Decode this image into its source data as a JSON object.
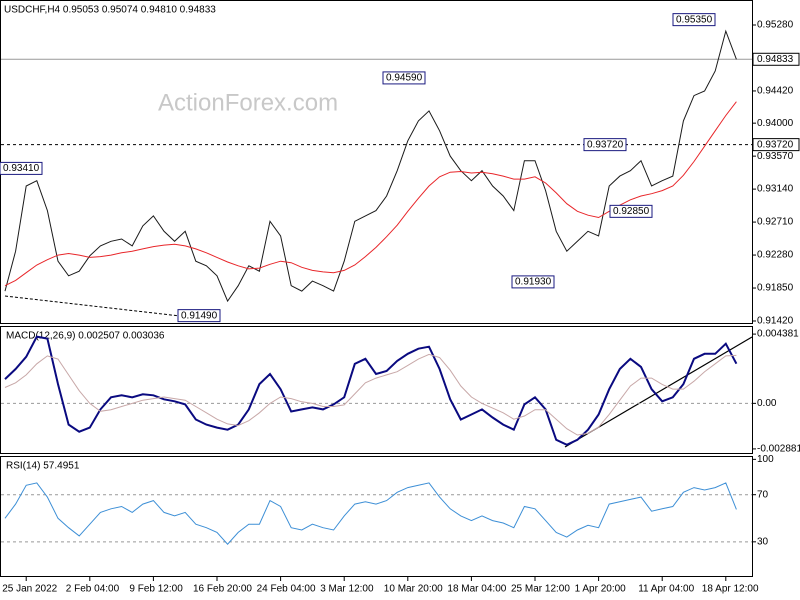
{
  "chart_data": [
    {
      "type": "line",
      "title": "USDCHF,H4 0.95053 0.95074 0.94810 0.94833",
      "watermark": "ActionForex.com",
      "categories": [
        null,
        null,
        "25 Jan 2022",
        null,
        null,
        null,
        null,
        null,
        "2 Feb 04:00",
        null,
        null,
        null,
        null,
        null,
        "9 Feb 12:00",
        null,
        null,
        null,
        null,
        null,
        "16 Feb 20:00",
        null,
        null,
        null,
        null,
        null,
        "24 Feb 04:00",
        null,
        null,
        null,
        null,
        null,
        "3 Mar 12:00",
        null,
        null,
        null,
        null,
        null,
        "10 Mar 20:00",
        null,
        null,
        null,
        null,
        null,
        "18 Mar 04:00",
        null,
        null,
        null,
        null,
        null,
        "25 Mar 12:00",
        null,
        null,
        null,
        null,
        null,
        "1 Apr 20:00",
        null,
        null,
        null,
        null,
        null,
        "11 Apr 04:00",
        null,
        null,
        null,
        null,
        null,
        "18 Apr 12:00",
        null
      ],
      "series": [
        {
          "color": "#1a1a1a",
          "values": [
            0.9181,
            0.9233,
            0.9318,
            0.9325,
            0.9286,
            0.922,
            0.9201,
            0.9207,
            0.9227,
            0.924,
            0.9246,
            0.9249,
            0.924,
            0.9266,
            0.9279,
            0.9259,
            0.9246,
            0.9259,
            0.922,
            0.9214,
            0.9201,
            0.9168,
            0.9188,
            0.9214,
            0.9207,
            0.9272,
            0.9253,
            0.9188,
            0.9181,
            0.9194,
            0.9188,
            0.9181,
            0.922,
            0.9272,
            0.9279,
            0.9286,
            0.9305,
            0.9338,
            0.9377,
            0.9403,
            0.9416,
            0.939,
            0.9357,
            0.9338,
            0.9325,
            0.9338,
            0.9318,
            0.9305,
            0.9286,
            0.9351,
            0.9351,
            0.9312,
            0.9259,
            0.9233,
            0.9246,
            0.9259,
            0.9253,
            0.9318,
            0.9331,
            0.9338,
            0.9351,
            0.9318,
            0.9325,
            0.9331,
            0.9403,
            0.9436,
            0.9442,
            0.9468,
            0.952,
            0.94833
          ]
        },
        {
          "color": "#e8262a",
          "values": [
            0.9188,
            0.9195,
            0.9205,
            0.9215,
            0.9222,
            0.9228,
            0.923,
            0.9228,
            0.9225,
            0.9226,
            0.9228,
            0.9231,
            0.9233,
            0.9236,
            0.9239,
            0.9241,
            0.9242,
            0.924,
            0.9236,
            0.9231,
            0.9225,
            0.9219,
            0.9214,
            0.921,
            0.9211,
            0.9216,
            0.922,
            0.9218,
            0.9212,
            0.9208,
            0.9206,
            0.9205,
            0.9208,
            0.9215,
            0.9226,
            0.9238,
            0.9252,
            0.9267,
            0.9285,
            0.9302,
            0.9318,
            0.933,
            0.9336,
            0.9337,
            0.9335,
            0.9336,
            0.9334,
            0.9331,
            0.9327,
            0.9327,
            0.933,
            0.9322,
            0.9309,
            0.9295,
            0.9285,
            0.928,
            0.9277,
            0.9285,
            0.9293,
            0.93,
            0.9305,
            0.9308,
            0.9312,
            0.9318,
            0.9332,
            0.935,
            0.937,
            0.939,
            0.941,
            0.9428
          ]
        }
      ],
      "ylim": [
        0.91394,
        0.95593
      ],
      "yticks": [
        {
          "value": 0.9528,
          "label": "0.95280"
        },
        {
          "value": 0.9442,
          "label": "0.94420"
        },
        {
          "value": 0.94,
          "label": "0.94000"
        },
        {
          "value": 0.9357,
          "label": "0.93570"
        },
        {
          "value": 0.9314,
          "label": "0.93140"
        },
        {
          "value": 0.9271,
          "label": "0.92710"
        },
        {
          "value": 0.9228,
          "label": "0.92280"
        },
        {
          "value": 0.9185,
          "label": "0.91850"
        },
        {
          "value": 0.9142,
          "label": "0.91420"
        }
      ],
      "levels": [
        {
          "value": 0.94833,
          "line": "solid"
        },
        {
          "value": 0.9372,
          "label": "0.93720",
          "line": "dashed"
        }
      ],
      "annotations": [
        {
          "value": 0.9341,
          "label": "0.93410"
        },
        {
          "value": 0.9459,
          "label": "0.94590"
        },
        {
          "value": 0.9149,
          "label": "0.91490"
        },
        {
          "value": 0.9372,
          "label": "0.93720"
        },
        {
          "value": 0.9285,
          "label": "0.92850"
        },
        {
          "value": 0.9193,
          "label": "0.91930"
        },
        {
          "value": 0.9535,
          "label": "0.95350"
        }
      ]
    },
    {
      "type": "line",
      "title": "MACD(12,26,9) 0.002507 0.003036",
      "series": [
        {
          "color": "#0a0a80",
          "values": [
            0.001536,
            0.002176,
            0.002944,
            0.004224,
            0.004096,
            0.001216,
            -0.001344,
            -0.001792,
            -0.001536,
            -0.000384,
            0.000384,
            0.000512,
            0.000384,
            0.000576,
            0.000512,
            0.000256,
            0.000128,
            -6.4e-05,
            -0.001024,
            -0.001344,
            -0.001536,
            -0.001664,
            -0.001344,
            -0.000384,
            0.001216,
            0.001856,
            0.000896,
            -0.000512,
            -0.000384,
            -0.000256,
            -0.000384,
            -6.4e-05,
            0.000384,
            0.002496,
            0.002816,
            0.001856,
            0.002048,
            0.002688,
            0.003136,
            0.003456,
            0.003584,
            0.002176,
            0.000256,
            -0.001024,
            -0.000704,
            -0.000384,
            -0.000896,
            -0.001344,
            -0.001664,
            -6.4e-05,
            0.000384,
            -0.000384,
            -0.002304,
            -0.002624,
            -0.002304,
            -0.001664,
            -0.000704,
            0.000896,
            0.002176,
            0.002816,
            0.002304,
            0.000896,
            0.000128,
            0.000384,
            0.001216,
            0.002816,
            0.003136,
            0.003136,
            0.003776,
            0.002507
          ]
        },
        {
          "color": "#c8a8a8",
          "values": [
            0.001,
            0.0013,
            0.0018,
            0.0025,
            0.003,
            0.0028,
            0.0018,
            0.0008,
            0,
            -0.0005,
            -0.0004,
            -0.0002,
            0,
            0.0002,
            0.0003,
            0.0004,
            0.0003,
            0.0002,
            -0.0002,
            -0.0006,
            -0.001,
            -0.0013,
            -0.0014,
            -0.0011,
            -0.0006,
            0,
            0.0004,
            0.0003,
            0.0001,
            0,
            -0.0002,
            -0.0002,
            -0.0001,
            0.0006,
            0.0013,
            0.0016,
            0.0018,
            0.002,
            0.0024,
            0.0028,
            0.0031,
            0.0029,
            0.0021,
            0.0011,
            0.0004,
            0,
            -0.0003,
            -0.0006,
            -0.001,
            -0.0008,
            -0.0004,
            -0.0004,
            -0.001,
            -0.0016,
            -0.002,
            -0.0019,
            -0.0015,
            -0.0007,
            0.0002,
            0.0011,
            0.0016,
            0.0016,
            0.0012,
            0.0009,
            0.0009,
            0.0014,
            0.002,
            0.0025,
            0.003,
            0.003036
          ]
        }
      ],
      "ylim": [
        -0.00314,
        0.00483
      ],
      "yticks": [
        0.004381,
        {
          "value": 0,
          "label": "0.00"
        },
        -0.002881
      ],
      "levels": [
        {
          "value": 0,
          "line": "dashed"
        }
      ]
    },
    {
      "type": "line",
      "title": "RSI(14) 57.4951",
      "series": [
        {
          "color": "#3d8fd6",
          "values": [
            50,
            62,
            78,
            80,
            68,
            50,
            42,
            35,
            45,
            55,
            58,
            60,
            55,
            62,
            65,
            55,
            52,
            55,
            45,
            42,
            38,
            28,
            38,
            45,
            45,
            65,
            60,
            42,
            40,
            45,
            42,
            40,
            52,
            62,
            64,
            62,
            65,
            72,
            76,
            78,
            80,
            68,
            58,
            52,
            48,
            52,
            48,
            46,
            42,
            60,
            58,
            48,
            38,
            34,
            40,
            44,
            42,
            62,
            64,
            66,
            68,
            56,
            58,
            60,
            72,
            76,
            74,
            76,
            80,
            57.4951
          ]
        }
      ],
      "ylim": [
        1,
        102
      ],
      "yticks": [
        100,
        70,
        30
      ],
      "levels": [
        {
          "value": 70,
          "line": "dashed"
        },
        {
          "value": 30,
          "line": "dashed"
        }
      ]
    }
  ]
}
